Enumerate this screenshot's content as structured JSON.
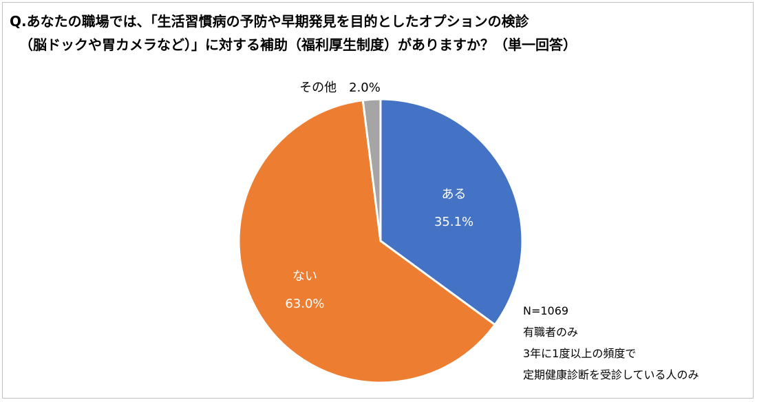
{
  "title": {
    "line1": "Q.あなたの職場では、「生活習慣病の予防や早期発見を目的としたオプションの検診",
    "line2": "（脳ドックや胃カメラなど）」に対する補助（福利厚生制度）がありますか？（単一回答）"
  },
  "notes": {
    "n": "N=1069",
    "line1": "有職者のみ",
    "line2": "3年に1度以上の頻度で",
    "line3": "定期健康診断を受診している人のみ"
  },
  "chart_data": {
    "type": "pie",
    "slices": [
      {
        "label": "ある",
        "value": 35.1,
        "value_text": "35.1%",
        "color": "#4472C4",
        "label_color": "#ffffff"
      },
      {
        "label": "ない",
        "value": 63.0,
        "value_text": "63.0%",
        "color": "#ED7D31",
        "label_color": "#ffffff"
      },
      {
        "label": "その他",
        "value": 2.0,
        "value_text": "2.0%",
        "color": "#A5A5A5",
        "label_color": "#000000"
      }
    ],
    "start_angle_deg": 0,
    "direction": "clockwise",
    "slice_border_color": "#ffffff"
  }
}
